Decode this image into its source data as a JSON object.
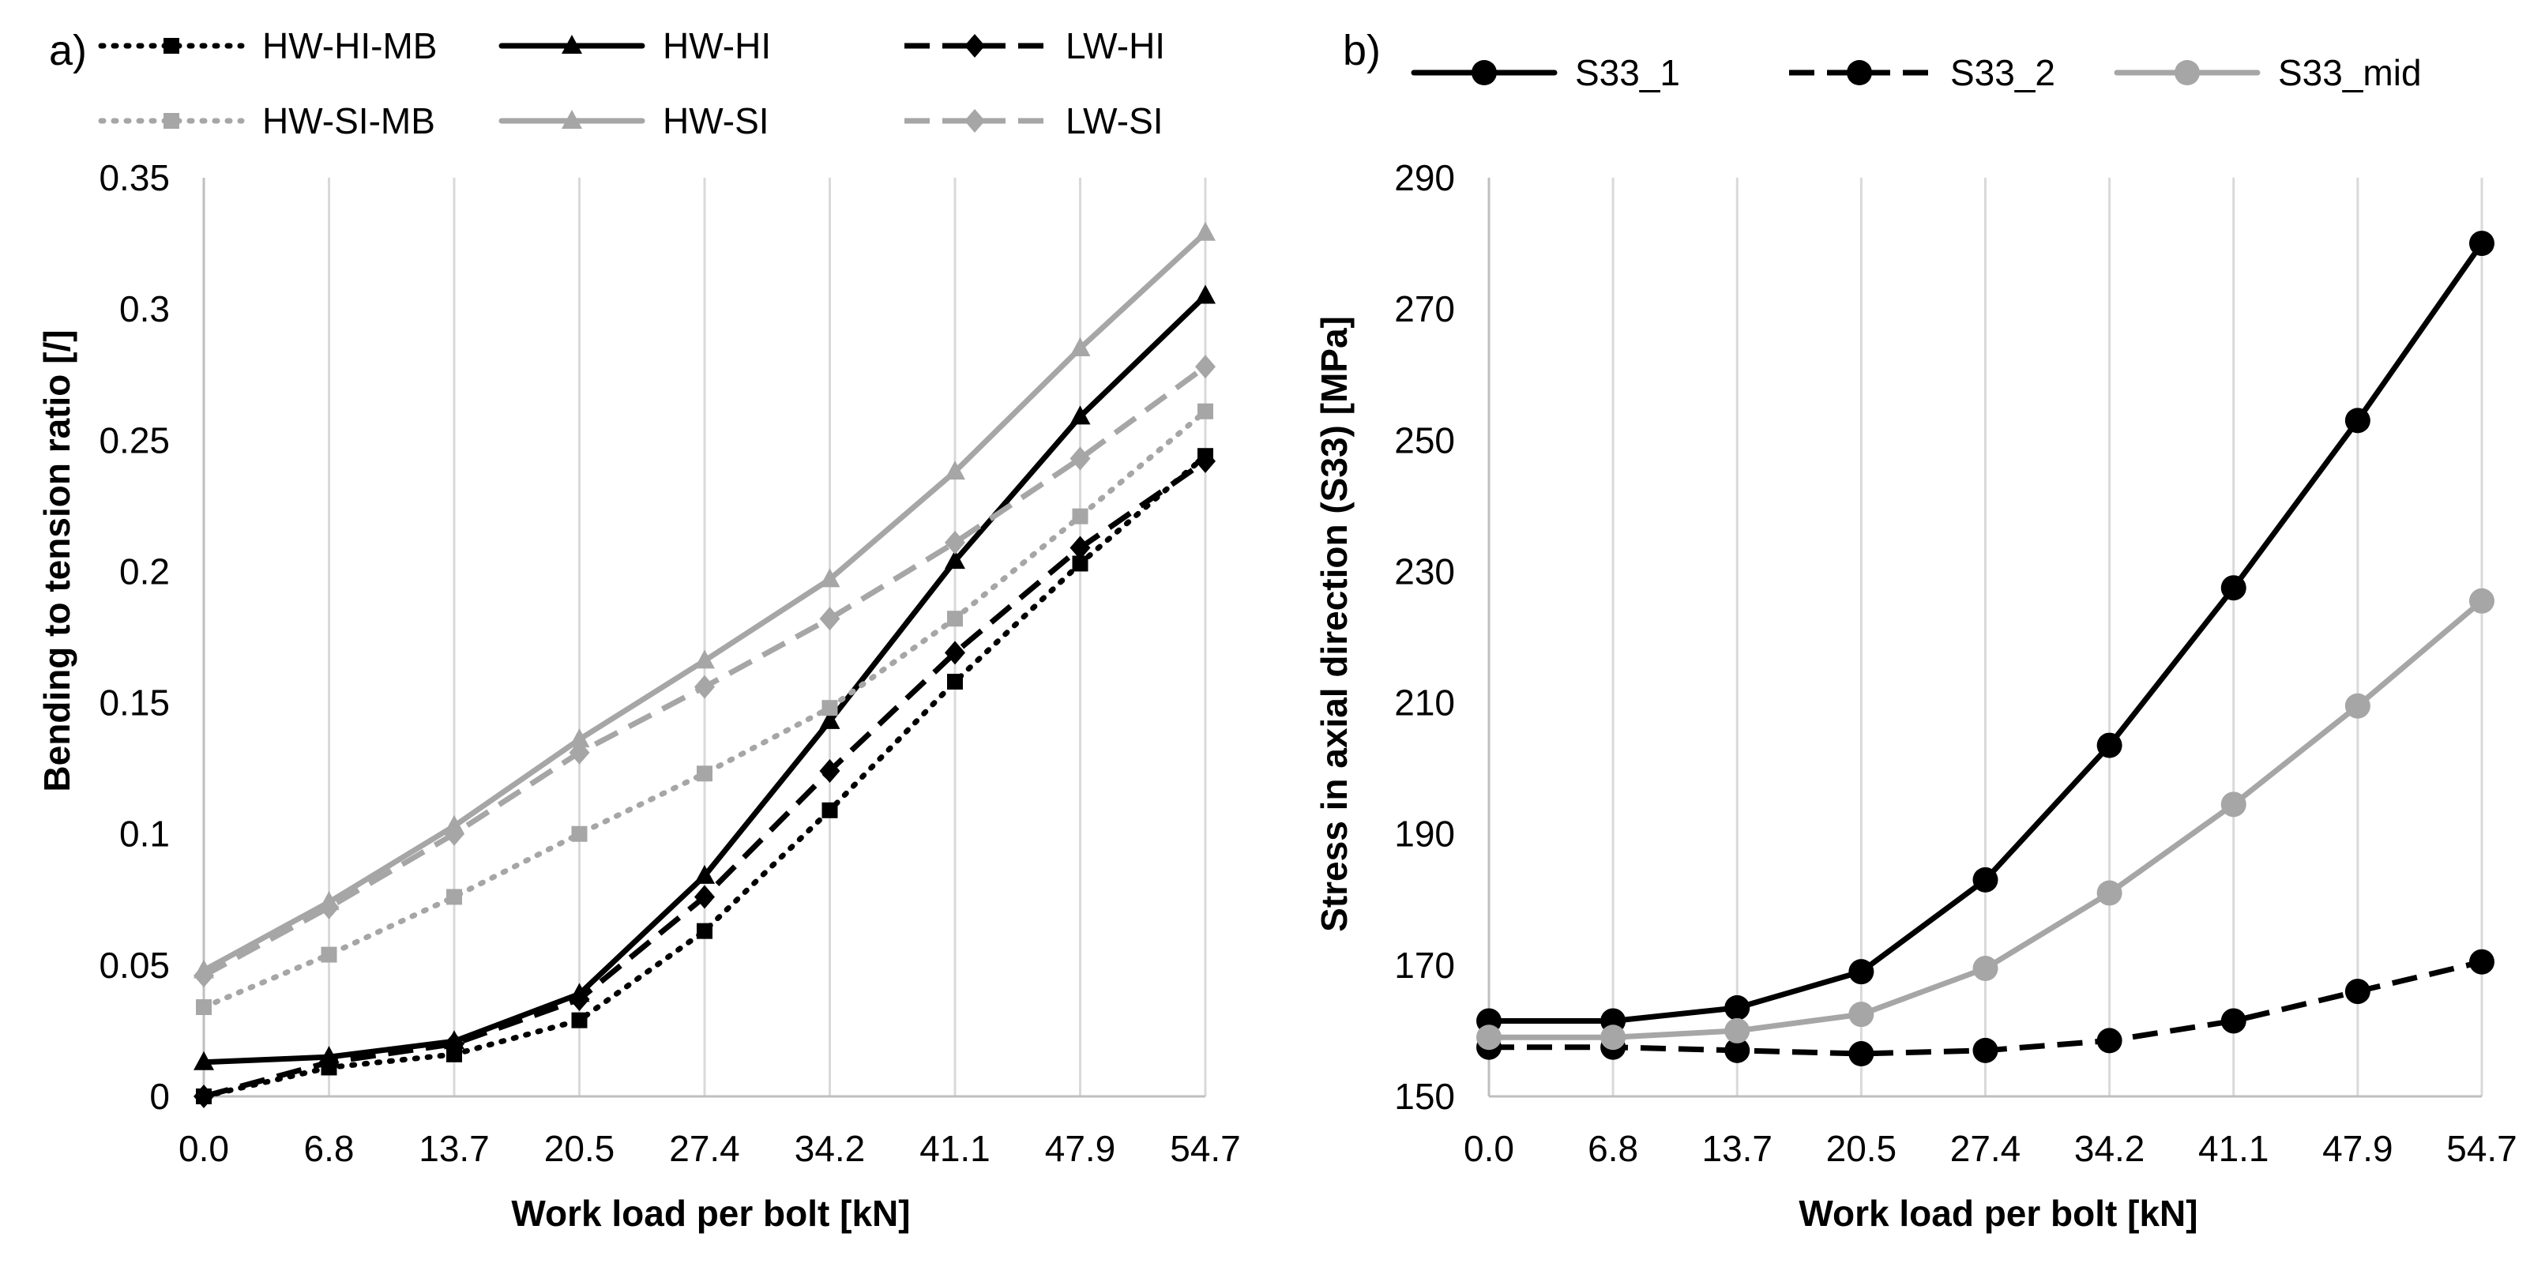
{
  "chart_data": [
    {
      "panel_label": "a)",
      "type": "line",
      "title": "",
      "xlabel": "Work load per bolt [kN]",
      "ylabel": "Bending to tension ratio [/]",
      "categories": [
        "0.0",
        "6.8",
        "13.7",
        "20.5",
        "27.4",
        "34.2",
        "41.1",
        "47.9",
        "54.7"
      ],
      "ylim": [
        0,
        0.35
      ],
      "yticks": [
        "0",
        "0.05",
        "0.1",
        "0.15",
        "0.2",
        "0.25",
        "0.3",
        "0.35"
      ],
      "grid": "vertical",
      "legend": "top",
      "series": [
        {
          "name": "HW-HI-MB",
          "color": "#000000",
          "dash": "dotted",
          "marker": "square",
          "values": [
            0.0,
            0.011,
            0.016,
            0.029,
            0.063,
            0.109,
            0.158,
            0.203,
            0.244
          ]
        },
        {
          "name": "HW-HI",
          "color": "#000000",
          "dash": "solid",
          "marker": "triangle",
          "values": [
            0.013,
            0.015,
            0.021,
            0.039,
            0.084,
            0.143,
            0.204,
            0.259,
            0.305
          ]
        },
        {
          "name": "LW-HI",
          "color": "#000000",
          "dash": "dashed",
          "marker": "diamond",
          "values": [
            0.0,
            0.013,
            0.02,
            0.037,
            0.076,
            0.124,
            0.169,
            0.209,
            0.242
          ]
        },
        {
          "name": "HW-SI-MB",
          "color": "#a6a6a6",
          "dash": "dotted",
          "marker": "square",
          "values": [
            0.034,
            0.054,
            0.076,
            0.1,
            0.123,
            0.148,
            0.182,
            0.221,
            0.261
          ]
        },
        {
          "name": "HW-SI",
          "color": "#a6a6a6",
          "dash": "solid",
          "marker": "triangle",
          "values": [
            0.048,
            0.074,
            0.103,
            0.136,
            0.166,
            0.197,
            0.238,
            0.285,
            0.329
          ]
        },
        {
          "name": "LW-SI",
          "color": "#a6a6a6",
          "dash": "dashed",
          "marker": "diamond",
          "values": [
            0.046,
            0.072,
            0.1,
            0.131,
            0.156,
            0.182,
            0.211,
            0.243,
            0.278
          ]
        }
      ]
    },
    {
      "panel_label": "b)",
      "type": "line",
      "title": "",
      "xlabel": "Work load per bolt [kN]",
      "ylabel": "Stress in axial direction (S33) [MPa]",
      "categories": [
        "0.0",
        "6.8",
        "13.7",
        "20.5",
        "27.4",
        "34.2",
        "41.1",
        "47.9",
        "54.7"
      ],
      "ylim": [
        150,
        290
      ],
      "yticks": [
        "150",
        "170",
        "190",
        "210",
        "230",
        "250",
        "270",
        "290"
      ],
      "grid": "vertical",
      "legend": "top",
      "series": [
        {
          "name": "S33_1",
          "color": "#000000",
          "dash": "solid",
          "marker": "circle",
          "values": [
            161.5,
            161.5,
            163.5,
            169,
            183,
            203.5,
            227.5,
            253,
            280
          ]
        },
        {
          "name": "S33_2",
          "color": "#000000",
          "dash": "dashed",
          "marker": "circle",
          "values": [
            157.5,
            157.5,
            157,
            156.5,
            157,
            158.5,
            161.5,
            166,
            170.5
          ]
        },
        {
          "name": "S33_mid",
          "color": "#a6a6a6",
          "dash": "solid",
          "marker": "circle",
          "values": [
            159,
            159,
            160,
            162.5,
            169.5,
            181,
            194.5,
            209.5,
            225.5
          ]
        }
      ]
    }
  ]
}
